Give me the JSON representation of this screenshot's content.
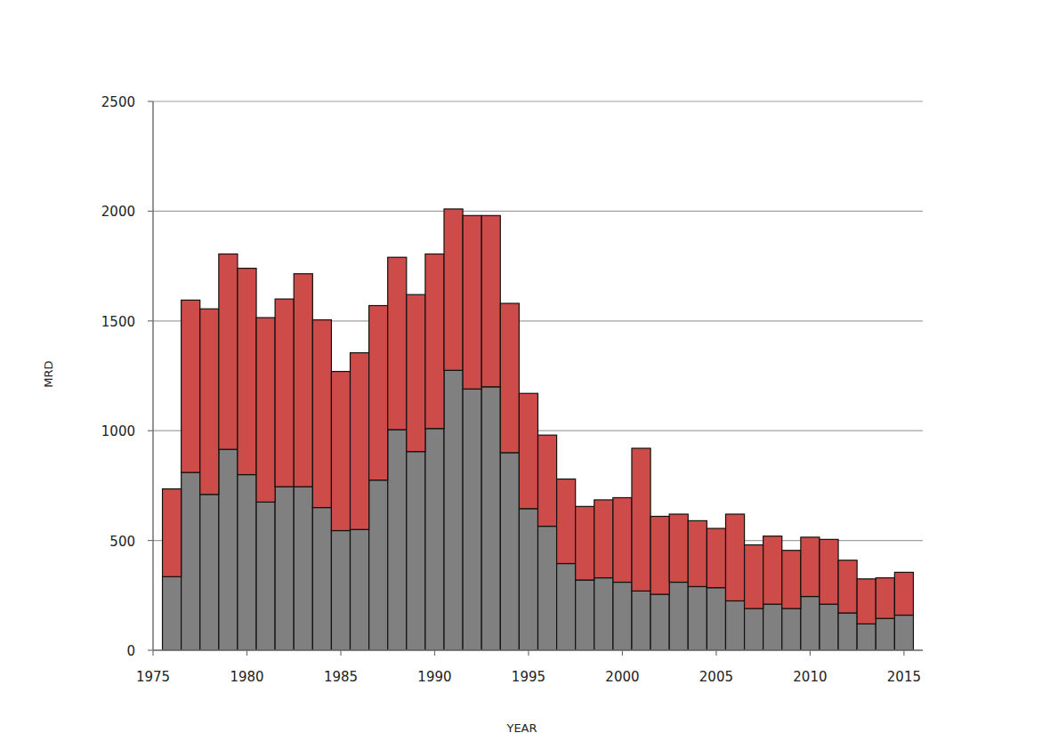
{
  "chart_data": {
    "type": "bar",
    "x_label": "YEAR",
    "y_label": "MRD",
    "x": [
      1976,
      1977,
      1978,
      1979,
      1980,
      1981,
      1982,
      1983,
      1984,
      1985,
      1986,
      1987,
      1988,
      1989,
      1990,
      1991,
      1992,
      1993,
      1994,
      1995,
      1996,
      1997,
      1998,
      1999,
      2000,
      2001,
      2002,
      2003,
      2004,
      2005,
      2006,
      2007,
      2008,
      2009,
      2010,
      2011,
      2012,
      2013,
      2014,
      2015
    ],
    "series": [
      {
        "color": "#808080",
        "values": [
          335,
          810,
          710,
          915,
          800,
          675,
          745,
          745,
          650,
          545,
          550,
          775,
          1005,
          905,
          1010,
          1275,
          1190,
          1200,
          900,
          645,
          565,
          395,
          320,
          330,
          310,
          270,
          255,
          310,
          290,
          285,
          225,
          190,
          210,
          190,
          245,
          210,
          170,
          120,
          145,
          160
        ]
      },
      {
        "color": "#cd4c4a",
        "values": [
          400,
          785,
          845,
          890,
          940,
          840,
          855,
          970,
          855,
          725,
          805,
          795,
          785,
          715,
          795,
          735,
          790,
          780,
          680,
          525,
          415,
          385,
          335,
          355,
          385,
          650,
          355,
          310,
          300,
          270,
          395,
          290,
          310,
          265,
          270,
          295,
          240,
          205,
          185,
          195
        ]
      }
    ],
    "stacked": true,
    "xlim": [
      1975,
      2016
    ],
    "xticks": [
      1975,
      1980,
      1985,
      1990,
      1995,
      2000,
      2005,
      2010,
      2015
    ],
    "ylim": [
      0,
      2500
    ],
    "yticks": [
      0,
      500,
      1000,
      1500,
      2000,
      2500
    ],
    "grid": true
  }
}
